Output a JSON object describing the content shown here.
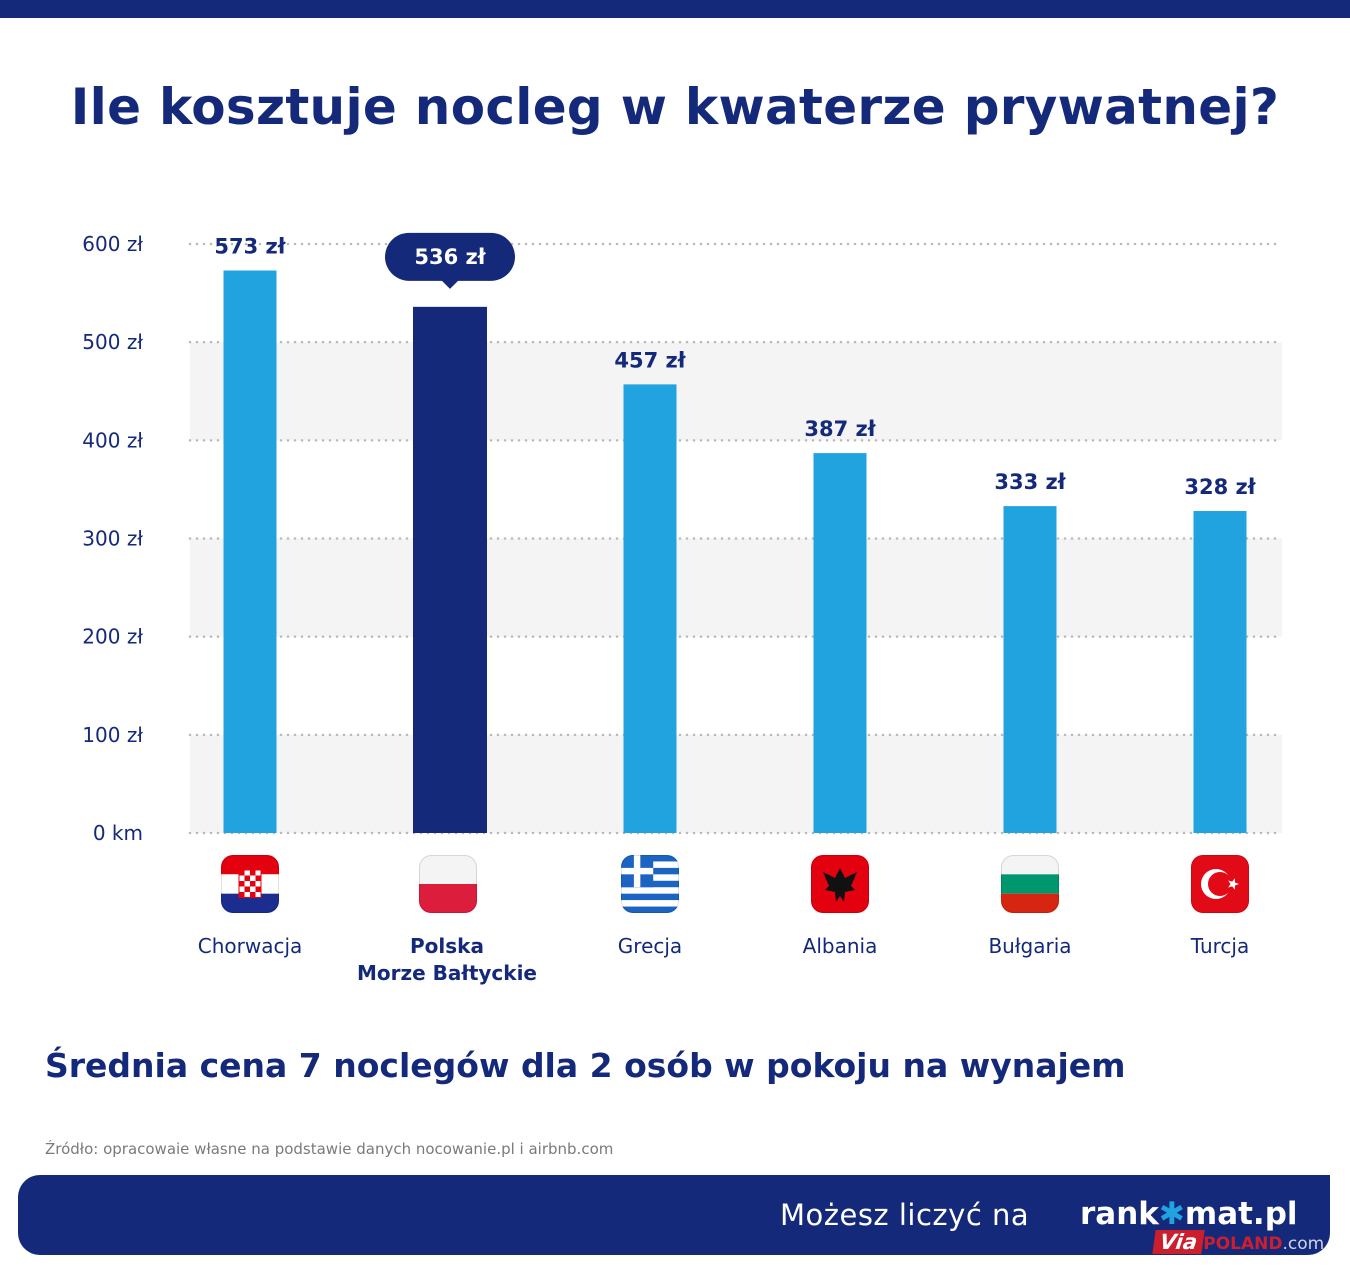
{
  "title": "Ile kosztuje nocleg w kwaterze prywatnej?",
  "subtitle": "Średnia cena 7 noclegów dla 2 osób w pokoju na wynajem",
  "source": "Źródło: opracowaie własne na podstawie danych nocowanie.pl i airbnb.com",
  "footer": {
    "tagline": "Możesz liczyć na",
    "brand_a": "rank",
    "brand_star": "✱",
    "brand_b": "mat.pl"
  },
  "watermark": {
    "via": "Via",
    "poland": "POLAND",
    "com": ".com"
  },
  "colors": {
    "accent": "#21a3df",
    "highlight": "#15297b",
    "band": "#f4f4f4",
    "grid": "#b8b8b8"
  },
  "chart_data": {
    "type": "bar",
    "categories": [
      "Chorwacja",
      "Polska\nMorze Bałtyckie",
      "Grecja",
      "Albania",
      "Bułgaria",
      "Turcja"
    ],
    "category_lines": [
      [
        "Chorwacja"
      ],
      [
        "Polska",
        "Morze Bałtyckie"
      ],
      [
        "Grecja"
      ],
      [
        "Albania"
      ],
      [
        "Bułgaria"
      ],
      [
        "Turcja"
      ]
    ],
    "flags": [
      "croatia-flag-icon",
      "poland-flag-icon",
      "greece-flag-icon",
      "albania-flag-icon",
      "bulgaria-flag-icon",
      "turkey-flag-icon"
    ],
    "values": [
      573,
      536,
      457,
      387,
      333,
      328
    ],
    "value_labels": [
      "573 zł",
      "536 zł",
      "457 zł",
      "387 zł",
      "333 zł",
      "328 zł"
    ],
    "highlighted_index": 1,
    "ylim": [
      0,
      600
    ],
    "y_ticks": [
      0,
      100,
      200,
      300,
      400,
      500,
      600
    ],
    "y_tick_labels": [
      "0 km",
      "100 zł",
      "200 zł",
      "300 zł",
      "400 zł",
      "500 zł",
      "600 zł"
    ],
    "grid": true,
    "xlabel": "",
    "ylabel": ""
  }
}
